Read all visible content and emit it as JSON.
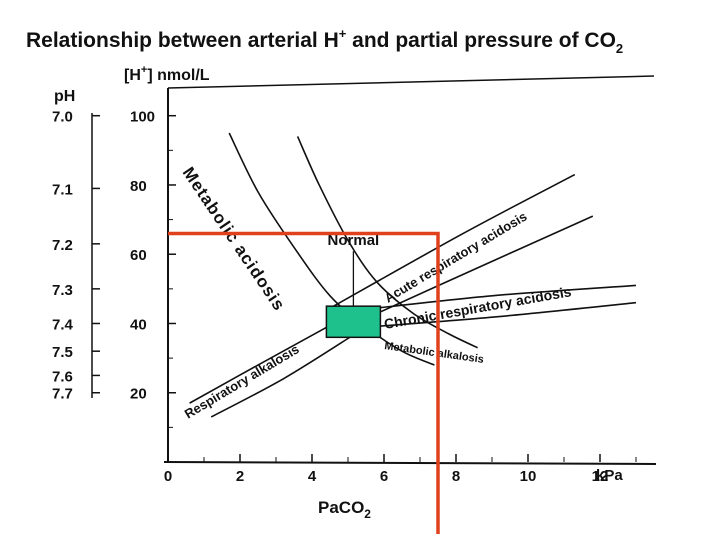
{
  "chart_data": {
    "type": "line",
    "title": "Relationship between arterial H",
    "title_sup": "+",
    "title_rest": " and partial pressure of CO",
    "title_sub": "2",
    "y_label_prefix": "[H",
    "y_label_sup": "+",
    "y_label_suffix": "] nmol/L",
    "ph_label": "pH",
    "x_unit": "kPa",
    "x_label": "PaCO",
    "x_label_sub": "2",
    "xlim": [
      0,
      13.5
    ],
    "ylim": [
      0,
      108
    ],
    "x_ticks": [
      0,
      2,
      4,
      6,
      8,
      10,
      12
    ],
    "y_ticks": [
      20,
      40,
      60,
      80,
      100
    ],
    "ph_ticks": [
      {
        "label": "7.0",
        "h": 100
      },
      {
        "label": "7.1",
        "h": 79
      },
      {
        "label": "7.2",
        "h": 63
      },
      {
        "label": "7.3",
        "h": 50
      },
      {
        "label": "7.4",
        "h": 40
      },
      {
        "label": "7.5",
        "h": 32
      },
      {
        "label": "7.6",
        "h": 25
      },
      {
        "label": "7.7",
        "h": 20
      }
    ],
    "regions": [
      {
        "name": "Metabolic acidosis",
        "boundaries": [
          [
            [
              1.7,
              95
            ],
            [
              2.5,
              78
            ],
            [
              3.5,
              62
            ],
            [
              4.5,
              48
            ],
            [
              5.5,
              39
            ],
            [
              6.5,
              32
            ],
            [
              7.4,
              28
            ]
          ],
          [
            [
              3.6,
              94
            ],
            [
              4.2,
              80
            ],
            [
              5.0,
              64
            ],
            [
              5.8,
              52
            ],
            [
              6.8,
              43
            ],
            [
              7.8,
              37
            ],
            [
              8.6,
              33
            ]
          ]
        ]
      },
      {
        "name": "Acute respiratory acidosis",
        "boundaries": [
          [
            [
              4.6,
              45
            ],
            [
              8.2,
              66
            ],
            [
              11.3,
              83
            ]
          ],
          [
            [
              5.4,
              41
            ],
            [
              8.8,
              57
            ],
            [
              11.8,
              71
            ]
          ]
        ]
      },
      {
        "name": "Chronic respiratory acidosis",
        "boundaries": [
          [
            [
              5.4,
              44
            ],
            [
              9.0,
              48
            ],
            [
              13.0,
              51
            ]
          ],
          [
            [
              5.6,
              39
            ],
            [
              9.2,
              42
            ],
            [
              13.0,
              46
            ]
          ]
        ]
      },
      {
        "name": "Metabolic alkalosis",
        "boundaries": []
      },
      {
        "name": "Respiratory alkalosis",
        "boundaries": [
          [
            [
              0.6,
              17
            ],
            [
              2.5,
              28
            ],
            [
              4.6,
              40
            ]
          ],
          [
            [
              1.2,
              13
            ],
            [
              3.2,
              24
            ],
            [
              5.2,
              37
            ]
          ]
        ]
      }
    ],
    "normal": {
      "label": "Normal",
      "x_range": [
        4.4,
        5.9
      ],
      "h_range": [
        36,
        45
      ]
    },
    "reference_lines": {
      "x": 7.5,
      "h": 66
    },
    "colors": {
      "reference": "#e0401c",
      "normal_fill": "#1ec08c",
      "ink": "#111111"
    }
  }
}
